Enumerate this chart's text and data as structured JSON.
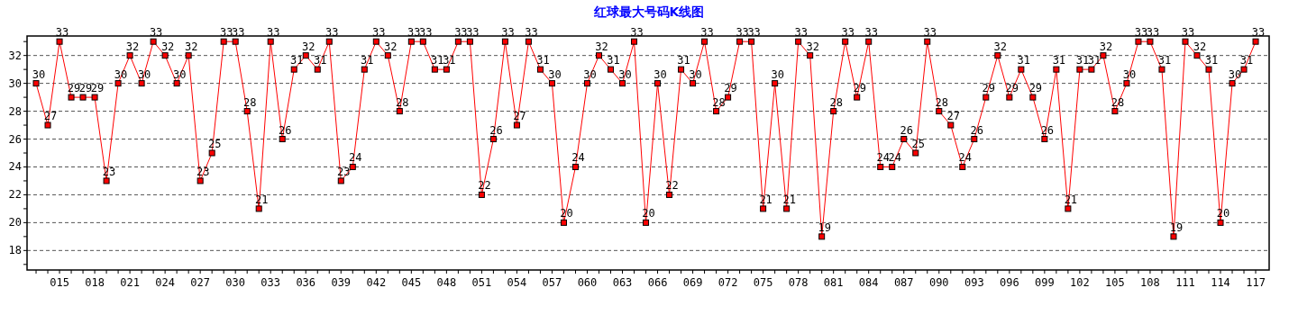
{
  "chart_data": {
    "type": "line",
    "title": "红球最大号码K线图",
    "categories": [
      null,
      null,
      "015",
      null,
      null,
      "018",
      null,
      null,
      "021",
      null,
      null,
      "024",
      null,
      null,
      "027",
      null,
      null,
      "030",
      null,
      null,
      "033",
      null,
      null,
      "036",
      null,
      null,
      "039",
      null,
      null,
      "042",
      null,
      null,
      "045",
      null,
      null,
      "048",
      null,
      null,
      "051",
      null,
      null,
      "054",
      null,
      null,
      "057",
      null,
      null,
      "060",
      null,
      null,
      "063",
      null,
      null,
      "066",
      null,
      null,
      "069",
      null,
      null,
      "072",
      null,
      null,
      "075",
      null,
      null,
      "078",
      null,
      null,
      "081",
      null,
      null,
      "084",
      null,
      null,
      "087",
      null,
      null,
      "090",
      null,
      null,
      "093",
      null,
      null,
      "096",
      null,
      null,
      "099",
      null,
      null,
      "102",
      null,
      null,
      "105",
      null,
      null,
      "108",
      null,
      null,
      "111",
      null,
      null,
      "114",
      null,
      null,
      "117"
    ],
    "series": [
      {
        "color": "#ff0000",
        "values": [
          30,
          27,
          33,
          29,
          29,
          29,
          23,
          30,
          32,
          30,
          33,
          32,
          30,
          32,
          23,
          25,
          33,
          33,
          28,
          21,
          33,
          26,
          31,
          32,
          31,
          33,
          23,
          24,
          31,
          33,
          32,
          28,
          33,
          33,
          31,
          31,
          33,
          33,
          22,
          26,
          33,
          27,
          33,
          31,
          30,
          20,
          24,
          30,
          32,
          31,
          30,
          33,
          20,
          30,
          22,
          31,
          30,
          33,
          28,
          29,
          33,
          33,
          21,
          30,
          21,
          33,
          32,
          19,
          28,
          33,
          29,
          33,
          24,
          24,
          26,
          25,
          33,
          28,
          27,
          24,
          26,
          29,
          32,
          29,
          31,
          29,
          26,
          31,
          21,
          31,
          31,
          32,
          28,
          30,
          33,
          33,
          31,
          19,
          33,
          32,
          31,
          20,
          30,
          31,
          33
        ]
      }
    ],
    "ylim": [
      16.6,
      33.4
    ],
    "yticks": [
      {
        "value": 17,
        "label": null
      },
      18,
      {
        "value": 19,
        "label": null
      },
      20,
      {
        "value": 21,
        "label": null
      },
      22,
      {
        "value": 23,
        "label": null
      },
      24,
      {
        "value": 25,
        "label": null
      },
      26,
      {
        "value": 27,
        "label": null
      },
      28,
      {
        "value": 29,
        "label": null
      },
      30,
      {
        "value": 31,
        "label": null
      },
      32,
      {
        "value": 33,
        "label": null
      }
    ],
    "grid": "y",
    "marker": "square",
    "line_style": "solid",
    "data_labels": true
  }
}
